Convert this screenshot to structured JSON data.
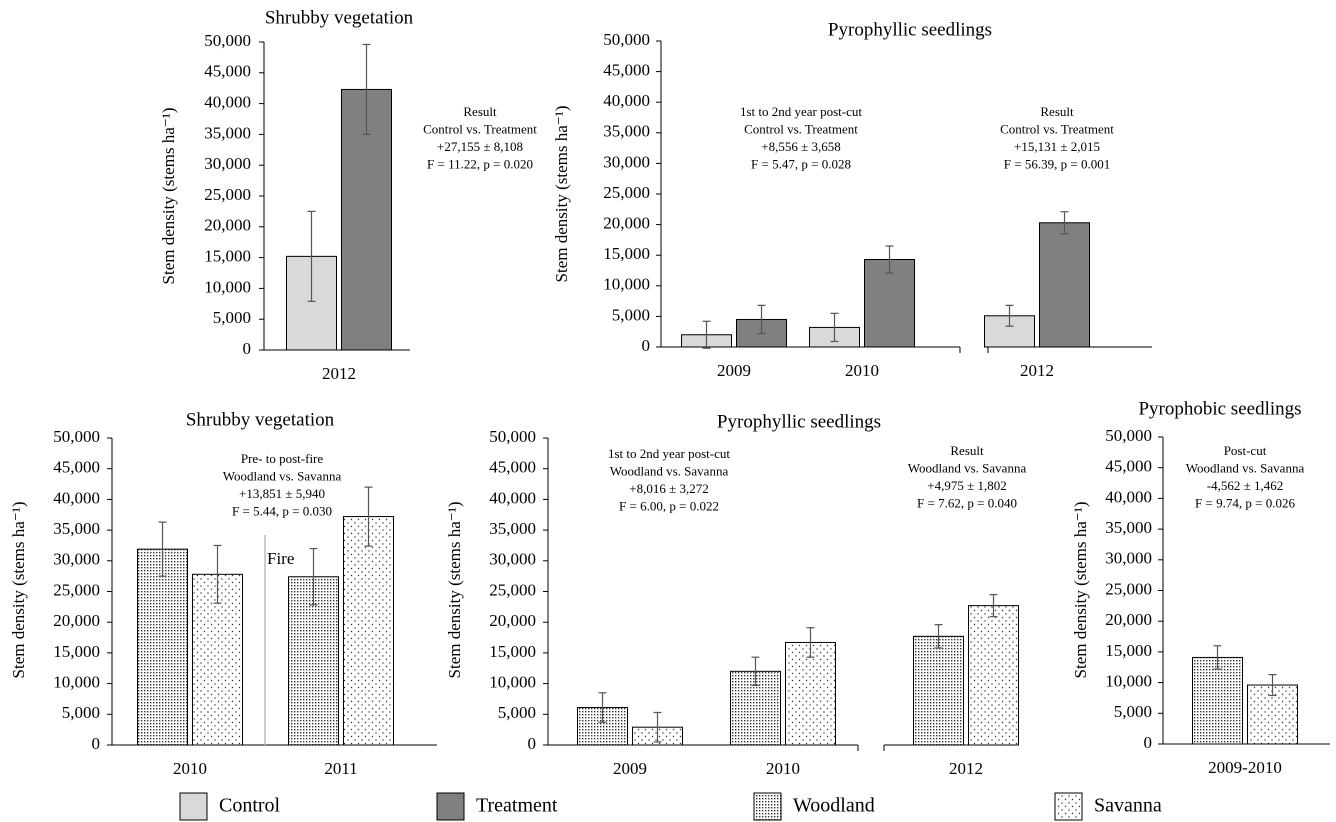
{
  "chart_data": [
    {
      "type": "bar",
      "title": "Shrubby vegetation",
      "y_label": "Stem density (stems ha⁻¹)",
      "categories": [
        "2012"
      ],
      "series": [
        {
          "name": "Control",
          "color": "#d9d9d9",
          "values": [
            15200
          ],
          "errors": [
            7300
          ]
        },
        {
          "name": "Treatment",
          "color": "#808080",
          "values": [
            42300
          ],
          "errors": [
            7300
          ]
        }
      ],
      "ylim": [
        0,
        50000
      ],
      "yticks": [
        0,
        {
          "value": 5000,
          "label": "5,000"
        },
        {
          "value": 10000,
          "label": "10,000"
        },
        {
          "value": 15000,
          "label": "15,000"
        },
        {
          "value": 20000,
          "label": "20,000"
        },
        {
          "value": 25000,
          "label": "25,000"
        },
        {
          "value": 30000,
          "label": "30,000"
        },
        {
          "value": 35000,
          "label": "35,000"
        },
        {
          "value": 40000,
          "label": "40,000"
        },
        {
          "value": 45000,
          "label": "45,000"
        },
        {
          "value": 50000,
          "label": "50,000"
        }
      ],
      "annotations": [
        [
          "Result",
          "Control vs. Treatment",
          "+27,155 ± 8,108",
          "F = 11.22, p = 0.020"
        ]
      ]
    },
    {
      "type": "bar",
      "title": "Pyrophyllic seedlings",
      "y_label": "Stem density (stems ha⁻¹)",
      "categories": [
        "2009",
        "2010",
        "2012"
      ],
      "series": [
        {
          "name": "Control",
          "color": "#d9d9d9",
          "values": [
            2000,
            3200,
            5100
          ],
          "errors": [
            2200,
            2300,
            1700
          ]
        },
        {
          "name": "Treatment",
          "color": "#808080",
          "values": [
            4500,
            14300,
            20300
          ],
          "errors": [
            2300,
            2200,
            1800
          ]
        }
      ],
      "ylim": [
        0,
        50000
      ],
      "yticks": [
        0,
        {
          "value": 5000,
          "label": "5,000"
        },
        {
          "value": 10000,
          "label": "10,000"
        },
        {
          "value": 15000,
          "label": "15,000"
        },
        {
          "value": 20000,
          "label": "20,000"
        },
        {
          "value": 25000,
          "label": "25,000"
        },
        {
          "value": 30000,
          "label": "30,000"
        },
        {
          "value": 35000,
          "label": "35,000"
        },
        {
          "value": 40000,
          "label": "40,000"
        },
        {
          "value": 45000,
          "label": "45,000"
        },
        {
          "value": 50000,
          "label": "50,000"
        }
      ],
      "axis_break": true,
      "annotations": [
        [
          "1st to 2nd year post-cut",
          "Control vs. Treatment",
          "+8,556 ± 3,658",
          "F = 5.47, p = 0.028"
        ],
        [
          "Result",
          "Control vs. Treatment",
          "+15,131 ± 2,015",
          "F = 56.39, p = 0.001"
        ]
      ]
    },
    {
      "type": "bar",
      "title": "Shrubby vegetation",
      "y_label": "Stem density (stems ha⁻¹)",
      "categories": [
        "2010",
        "2011"
      ],
      "series": [
        {
          "name": "Woodland",
          "color": "#ffffff",
          "pattern": "dense-dots",
          "values": [
            31900,
            27400
          ],
          "errors": [
            4400,
            4600
          ]
        },
        {
          "name": "Savanna",
          "color": "#ffffff",
          "pattern": "sparse-dots",
          "values": [
            27800,
            37200
          ],
          "errors": [
            4700,
            4800
          ]
        }
      ],
      "ylim": [
        0,
        50000
      ],
      "yticks": [
        0,
        {
          "value": 5000,
          "label": "5,000"
        },
        {
          "value": 10000,
          "label": "10,000"
        },
        {
          "value": 15000,
          "label": "15,000"
        },
        {
          "value": 20000,
          "label": "20,000"
        },
        {
          "value": 25000,
          "label": "25,000"
        },
        {
          "value": 30000,
          "label": "30,000"
        },
        {
          "value": 35000,
          "label": "35,000"
        },
        {
          "value": 40000,
          "label": "40,000"
        },
        {
          "value": 45000,
          "label": "45,000"
        },
        {
          "value": 50000,
          "label": "50,000"
        }
      ],
      "divider_label": "Fire",
      "annotations": [
        [
          "Pre- to post-fire",
          "Woodland vs. Savanna",
          "+13,851 ± 5,940",
          "F = 5.44, p = 0.030"
        ]
      ]
    },
    {
      "type": "bar",
      "title": "Pyrophyllic seedlings",
      "y_label": "Stem density (stems ha⁻¹)",
      "categories": [
        "2009",
        "2010",
        "2012"
      ],
      "series": [
        {
          "name": "Woodland",
          "color": "#ffffff",
          "pattern": "dense-dots",
          "values": [
            6100,
            12000,
            17700
          ],
          "errors": [
            2400,
            2300,
            1900
          ]
        },
        {
          "name": "Savanna",
          "color": "#ffffff",
          "pattern": "sparse-dots",
          "values": [
            2900,
            16700,
            22700
          ],
          "errors": [
            2400,
            2400,
            1800
          ]
        }
      ],
      "ylim": [
        0,
        50000
      ],
      "yticks": [
        0,
        {
          "value": 5000,
          "label": "5,000"
        },
        {
          "value": 10000,
          "label": "10,000"
        },
        {
          "value": 15000,
          "label": "15,000"
        },
        {
          "value": 20000,
          "label": "20,000"
        },
        {
          "value": 25000,
          "label": "25,000"
        },
        {
          "value": 30000,
          "label": "30,000"
        },
        {
          "value": 35000,
          "label": "35,000"
        },
        {
          "value": 40000,
          "label": "40,000"
        },
        {
          "value": 45000,
          "label": "45,000"
        },
        {
          "value": 50000,
          "label": "50,000"
        }
      ],
      "axis_break": true,
      "annotations": [
        [
          "1st to 2nd year post-cut",
          "Woodland vs. Savanna",
          "+8,016 ± 3,272",
          "F = 6.00, p = 0.022"
        ],
        [
          "Result",
          "Woodland vs. Savanna",
          "+4,975 ± 1,802",
          "F = 7.62, p = 0.040"
        ]
      ]
    },
    {
      "type": "bar",
      "title": "Pyrophobic seedlings",
      "y_label": "Stem density (stems ha⁻¹)",
      "categories": [
        "2009-2010"
      ],
      "series": [
        {
          "name": "Woodland",
          "color": "#ffffff",
          "pattern": "dense-dots",
          "values": [
            14100
          ],
          "errors": [
            1900
          ]
        },
        {
          "name": "Savanna",
          "color": "#ffffff",
          "pattern": "sparse-dots",
          "values": [
            9600
          ],
          "errors": [
            1700
          ]
        }
      ],
      "ylim": [
        0,
        50000
      ],
      "yticks": [
        0,
        {
          "value": 5000,
          "label": "5,000"
        },
        {
          "value": 10000,
          "label": "10,000"
        },
        {
          "value": 15000,
          "label": "15,000"
        },
        {
          "value": 20000,
          "label": "20,000"
        },
        {
          "value": 25000,
          "label": "25,000"
        },
        {
          "value": 30000,
          "label": "30,000"
        },
        {
          "value": 35000,
          "label": "35,000"
        },
        {
          "value": 40000,
          "label": "40,000"
        },
        {
          "value": 45000,
          "label": "45,000"
        },
        {
          "value": 50000,
          "label": "50,000"
        }
      ],
      "annotations": [
        [
          "Post-cut",
          "Woodland vs. Savanna",
          "-4,562 ± 1,462",
          "F = 9.74, p = 0.026"
        ]
      ]
    }
  ]
}
